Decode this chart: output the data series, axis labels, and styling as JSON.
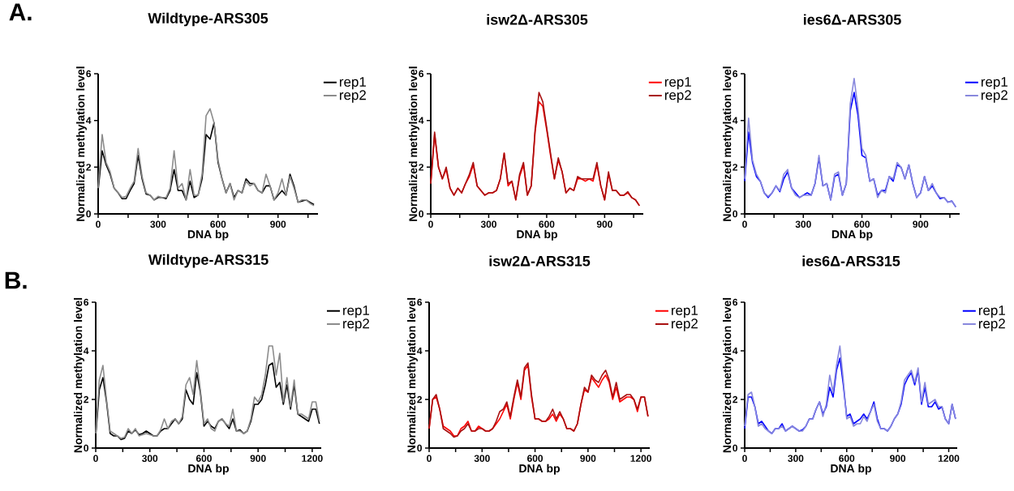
{
  "chart_data": [
    {
      "type": "line",
      "title": "Wildtype-ARS305",
      "xlabel": "DNA bp",
      "ylabel": "Normalized methylation level",
      "annotations": [
        "A."
      ],
      "x": [
        0,
        20,
        40,
        60,
        80,
        100,
        120,
        140,
        160,
        180,
        200,
        220,
        240,
        260,
        280,
        300,
        320,
        340,
        360,
        380,
        400,
        420,
        440,
        460,
        480,
        500,
        520,
        540,
        560,
        580,
        600,
        620,
        640,
        660,
        680,
        700,
        720,
        740,
        760,
        780,
        800,
        820,
        840,
        860,
        880,
        900,
        920,
        940,
        960,
        980,
        1000,
        1020,
        1040,
        1060,
        1080
      ],
      "series": [
        {
          "name": "rep1",
          "color": "#000000",
          "values": [
            1.0,
            2.7,
            2.1,
            1.7,
            1.1,
            0.9,
            0.65,
            0.65,
            1.0,
            1.3,
            2.5,
            1.5,
            0.85,
            0.8,
            0.6,
            0.7,
            0.7,
            0.65,
            1.0,
            1.9,
            1.0,
            1.0,
            0.6,
            1.4,
            0.7,
            0.8,
            1.5,
            3.4,
            3.2,
            3.9,
            2.2,
            1.5,
            0.9,
            1.3,
            0.7,
            1.0,
            0.9,
            1.5,
            1.3,
            1.3,
            1.0,
            0.9,
            1.2,
            1.2,
            0.6,
            0.8,
            1.0,
            0.8,
            1.7,
            1.2,
            0.5,
            0.55,
            0.6,
            0.5,
            0.4
          ]
        },
        {
          "name": "rep2",
          "color": "#8c8c8c",
          "values": [
            1.1,
            3.4,
            2.2,
            1.8,
            1.1,
            0.9,
            0.7,
            0.75,
            1.1,
            1.4,
            2.8,
            1.6,
            0.9,
            0.8,
            0.6,
            0.75,
            0.7,
            0.7,
            1.1,
            2.7,
            1.1,
            1.3,
            0.6,
            1.9,
            0.8,
            0.8,
            1.7,
            4.2,
            4.5,
            3.9,
            2.3,
            1.5,
            0.9,
            1.3,
            0.6,
            1.0,
            0.9,
            1.4,
            1.2,
            1.3,
            1.0,
            0.9,
            1.7,
            1.2,
            0.6,
            0.9,
            1.5,
            0.8,
            1.6,
            1.1,
            0.5,
            0.6,
            0.6,
            0.45,
            0.35
          ]
        }
      ],
      "xlim": [
        0,
        1100
      ],
      "xticks": [
        0,
        {
          "value": 150,
          "label": null
        },
        300,
        {
          "value": 450,
          "label": null
        },
        600,
        {
          "value": 750,
          "label": null
        },
        900,
        {
          "value": 1050,
          "label": null
        }
      ],
      "ylim": [
        0,
        6
      ],
      "yticks": [
        0,
        2,
        4,
        6
      ],
      "legend": "top right"
    },
    {
      "type": "line",
      "title": "isw2Δ-ARS305",
      "xlabel": "DNA bp",
      "ylabel": "Normalized methylation level",
      "x": [
        0,
        20,
        40,
        60,
        80,
        100,
        120,
        140,
        160,
        180,
        200,
        220,
        240,
        260,
        280,
        300,
        320,
        340,
        360,
        380,
        400,
        420,
        440,
        460,
        480,
        500,
        520,
        540,
        560,
        580,
        600,
        620,
        640,
        660,
        680,
        700,
        720,
        740,
        760,
        780,
        800,
        820,
        840,
        860,
        880,
        900,
        920,
        940,
        960,
        980,
        1000,
        1020,
        1040,
        1060,
        1080
      ],
      "series": [
        {
          "name": "rep1",
          "color": "#ff0000",
          "values": [
            1.3,
            3.4,
            2.0,
            1.5,
            1.9,
            1.1,
            0.8,
            1.1,
            0.9,
            1.3,
            1.6,
            2.1,
            1.2,
            1.0,
            0.8,
            0.9,
            0.9,
            1.0,
            1.5,
            2.6,
            1.2,
            1.4,
            0.6,
            1.6,
            2.1,
            0.8,
            1.2,
            3.5,
            4.8,
            4.6,
            3.6,
            2.5,
            1.5,
            2.3,
            1.8,
            0.9,
            1.1,
            1.0,
            1.5,
            1.5,
            1.4,
            1.5,
            1.4,
            2.1,
            1.2,
            0.6,
            1.7,
            1.0,
            1.0,
            0.8,
            0.8,
            0.9,
            0.7,
            0.6,
            0.35
          ]
        },
        {
          "name": "rep2",
          "color": "#a81010",
          "values": [
            1.3,
            3.5,
            2.0,
            1.5,
            2.0,
            1.1,
            0.8,
            1.1,
            0.9,
            1.3,
            1.7,
            2.2,
            1.2,
            1.0,
            0.8,
            0.9,
            0.9,
            1.0,
            1.5,
            2.6,
            1.3,
            1.4,
            0.6,
            1.7,
            2.2,
            0.8,
            1.2,
            3.6,
            5.2,
            4.8,
            3.7,
            2.6,
            1.5,
            2.4,
            1.8,
            0.9,
            1.1,
            1.0,
            1.6,
            1.5,
            1.5,
            1.5,
            1.5,
            2.2,
            1.2,
            0.6,
            1.8,
            1.0,
            1.0,
            0.8,
            0.8,
            0.95,
            0.7,
            0.6,
            0.35
          ]
        }
      ],
      "xlim": [
        0,
        1100
      ],
      "xticks": [
        0,
        {
          "value": 150,
          "label": null
        },
        300,
        {
          "value": 450,
          "label": null
        },
        600,
        {
          "value": 750,
          "label": null
        },
        900,
        {
          "value": 1050,
          "label": null
        }
      ],
      "ylim": [
        0,
        6
      ],
      "yticks": [
        0,
        2,
        4,
        6
      ],
      "legend": "top right"
    },
    {
      "type": "line",
      "title": "ies6Δ-ARS305",
      "xlabel": "DNA bp",
      "ylabel": "Normalized methylation level",
      "x": [
        0,
        20,
        40,
        60,
        80,
        100,
        120,
        140,
        160,
        180,
        200,
        220,
        240,
        260,
        280,
        300,
        320,
        340,
        360,
        380,
        400,
        420,
        440,
        460,
        480,
        500,
        520,
        540,
        560,
        580,
        600,
        620,
        640,
        660,
        680,
        700,
        720,
        740,
        760,
        780,
        800,
        820,
        840,
        860,
        880,
        900,
        920,
        940,
        960,
        980,
        1000,
        1020,
        1040,
        1060,
        1080
      ],
      "series": [
        {
          "name": "rep1",
          "color": "#0000ff",
          "values": [
            1.4,
            3.5,
            2.2,
            1.6,
            1.4,
            0.9,
            0.7,
            0.9,
            1.2,
            0.95,
            1.5,
            1.8,
            1.1,
            0.9,
            0.7,
            0.8,
            0.9,
            0.8,
            1.3,
            2.4,
            1.2,
            1.3,
            0.6,
            1.6,
            1.7,
            0.8,
            1.3,
            4.4,
            5.2,
            4.2,
            2.5,
            2.4,
            1.4,
            1.5,
            0.8,
            1.0,
            1.0,
            1.6,
            1.4,
            2.1,
            2.0,
            1.5,
            2.1,
            1.3,
            0.7,
            0.9,
            1.6,
            1.0,
            1.2,
            0.9,
            0.65,
            0.7,
            0.5,
            0.55,
            0.3
          ]
        },
        {
          "name": "rep2",
          "color": "#8888dd",
          "values": [
            1.5,
            4.1,
            2.3,
            1.7,
            1.4,
            0.9,
            0.75,
            0.9,
            1.2,
            1.0,
            1.7,
            1.9,
            1.1,
            0.8,
            0.7,
            0.8,
            0.8,
            0.8,
            1.3,
            2.5,
            1.2,
            1.3,
            0.6,
            1.7,
            1.8,
            0.8,
            1.3,
            4.7,
            5.8,
            4.5,
            2.8,
            2.5,
            1.4,
            1.5,
            0.7,
            1.0,
            0.9,
            1.6,
            1.5,
            2.2,
            2.0,
            1.5,
            2.1,
            1.3,
            0.7,
            0.9,
            1.6,
            1.0,
            1.3,
            0.9,
            0.7,
            0.7,
            0.5,
            0.55,
            0.3
          ]
        }
      ],
      "xlim": [
        0,
        1100
      ],
      "xticks": [
        0,
        {
          "value": 150,
          "label": null
        },
        300,
        {
          "value": 450,
          "label": null
        },
        600,
        {
          "value": 750,
          "label": null
        },
        900,
        {
          "value": 1050,
          "label": null
        }
      ],
      "ylim": [
        0,
        6
      ],
      "yticks": [
        0,
        2,
        4,
        6
      ],
      "legend": "top right"
    },
    {
      "type": "line",
      "title": "Wildtype-ARS315",
      "xlabel": "DNA bp",
      "ylabel": "Normalized methylation level",
      "annotations": [
        "B."
      ],
      "x": [
        0,
        20,
        40,
        60,
        80,
        100,
        120,
        140,
        160,
        180,
        200,
        220,
        240,
        260,
        280,
        300,
        320,
        340,
        360,
        380,
        400,
        420,
        440,
        460,
        480,
        500,
        520,
        540,
        560,
        580,
        600,
        620,
        640,
        660,
        680,
        700,
        720,
        740,
        760,
        780,
        800,
        820,
        840,
        860,
        880,
        900,
        920,
        940,
        960,
        980,
        1000,
        1020,
        1040,
        1060,
        1080,
        1100,
        1120,
        1140,
        1160,
        1180,
        1200,
        1220,
        1240
      ],
      "series": [
        {
          "name": "rep1",
          "color": "#000000",
          "values": [
            0.5,
            2.4,
            2.9,
            1.9,
            0.6,
            0.5,
            0.5,
            0.35,
            0.4,
            0.7,
            0.6,
            0.75,
            0.55,
            0.6,
            0.7,
            0.6,
            0.5,
            0.5,
            0.7,
            0.8,
            0.8,
            1.0,
            1.2,
            1.0,
            1.2,
            2.4,
            2.0,
            1.8,
            3.1,
            2.3,
            0.9,
            1.1,
            0.9,
            0.8,
            1.1,
            1.2,
            1.0,
            0.8,
            1.2,
            0.7,
            0.75,
            0.6,
            0.7,
            1.1,
            1.8,
            1.8,
            2.0,
            2.6,
            3.4,
            3.5,
            2.5,
            2.7,
            1.8,
            2.6,
            1.6,
            2.6,
            1.4,
            1.3,
            1.2,
            1.1,
            1.6,
            1.6,
            1.0
          ]
        },
        {
          "name": "rep2",
          "color": "#8c8c8c",
          "values": [
            0.6,
            2.8,
            3.4,
            2.0,
            0.7,
            0.6,
            0.5,
            0.4,
            0.45,
            0.8,
            0.6,
            0.8,
            0.5,
            0.55,
            0.6,
            0.55,
            0.5,
            0.5,
            0.75,
            1.2,
            0.8,
            1.1,
            1.2,
            1.0,
            1.3,
            2.6,
            2.9,
            2.2,
            3.6,
            2.4,
            1.0,
            1.2,
            0.8,
            0.7,
            1.1,
            1.2,
            1.0,
            0.9,
            1.6,
            0.7,
            0.7,
            0.6,
            0.7,
            1.2,
            2.1,
            1.9,
            2.2,
            3.0,
            4.2,
            4.2,
            3.0,
            3.9,
            1.9,
            2.9,
            1.7,
            2.8,
            1.4,
            1.4,
            1.3,
            1.2,
            1.9,
            1.9,
            1.1
          ]
        }
      ],
      "xlim": [
        0,
        1250
      ],
      "xticks": [
        0,
        {
          "value": 150,
          "label": null
        },
        300,
        {
          "value": 450,
          "label": null
        },
        600,
        {
          "value": 750,
          "label": null
        },
        900,
        {
          "value": 1050,
          "label": null
        },
        1200
      ],
      "ylim": [
        0,
        6
      ],
      "yticks": [
        0,
        2,
        4,
        6
      ],
      "legend": "top right"
    },
    {
      "type": "line",
      "title": "isw2Δ-ARS315",
      "xlabel": "DNA bp",
      "ylabel": "Normalized methylation level",
      "x": [
        0,
        20,
        40,
        60,
        80,
        100,
        120,
        140,
        160,
        180,
        200,
        220,
        240,
        260,
        280,
        300,
        320,
        340,
        360,
        380,
        400,
        420,
        440,
        460,
        480,
        500,
        520,
        540,
        560,
        580,
        600,
        620,
        640,
        660,
        680,
        700,
        720,
        740,
        760,
        780,
        800,
        820,
        840,
        860,
        880,
        900,
        920,
        940,
        960,
        980,
        1000,
        1020,
        1040,
        1060,
        1080,
        1100,
        1120,
        1140,
        1160,
        1180,
        1200,
        1220,
        1240
      ],
      "series": [
        {
          "name": "rep1",
          "color": "#ff0000",
          "values": [
            0.8,
            2.0,
            2.1,
            1.6,
            0.9,
            0.8,
            0.7,
            0.5,
            0.5,
            0.8,
            0.9,
            1.1,
            0.7,
            0.7,
            0.9,
            0.8,
            0.7,
            0.7,
            0.8,
            1.0,
            1.2,
            1.5,
            1.8,
            1.2,
            2.0,
            2.7,
            2.0,
            3.2,
            3.4,
            2.1,
            1.2,
            1.2,
            1.1,
            1.1,
            1.2,
            1.4,
            1.1,
            1.4,
            1.2,
            0.8,
            0.8,
            0.7,
            1.0,
            1.8,
            2.4,
            2.3,
            2.9,
            2.7,
            2.5,
            2.8,
            3.0,
            2.7,
            2.0,
            2.5,
            1.9,
            2.0,
            2.1,
            2.1,
            2.0,
            1.5,
            2.1,
            2.1,
            1.3
          ]
        },
        {
          "name": "rep2",
          "color": "#a81010",
          "values": [
            0.8,
            2.0,
            2.2,
            1.6,
            0.8,
            0.7,
            0.6,
            0.45,
            0.5,
            0.7,
            0.8,
            1.0,
            0.7,
            0.7,
            0.8,
            0.8,
            0.7,
            0.7,
            0.8,
            1.1,
            1.5,
            1.6,
            1.9,
            1.3,
            2.1,
            2.8,
            2.1,
            3.3,
            3.5,
            2.2,
            1.2,
            1.2,
            1.1,
            1.1,
            1.3,
            1.6,
            1.2,
            1.5,
            1.2,
            0.8,
            0.8,
            0.7,
            1.0,
            1.8,
            2.5,
            2.3,
            3.0,
            2.8,
            2.7,
            3.0,
            3.2,
            2.8,
            2.1,
            2.7,
            2.0,
            2.1,
            2.2,
            2.2,
            2.0,
            1.6,
            2.1,
            2.1,
            1.3
          ]
        }
      ],
      "xlim": [
        0,
        1250
      ],
      "xticks": [
        0,
        {
          "value": 150,
          "label": null
        },
        300,
        {
          "value": 450,
          "label": null
        },
        600,
        {
          "value": 750,
          "label": null
        },
        900,
        {
          "value": 1050,
          "label": null
        },
        1200
      ],
      "ylim": [
        0,
        6
      ],
      "yticks": [
        0,
        2,
        4,
        6
      ],
      "legend": "top right"
    },
    {
      "type": "line",
      "title": "ies6Δ-ARS315",
      "xlabel": "DNA bp",
      "ylabel": "Normalized methylation level",
      "x": [
        0,
        20,
        40,
        60,
        80,
        100,
        120,
        140,
        160,
        180,
        200,
        220,
        240,
        260,
        280,
        300,
        320,
        340,
        360,
        380,
        400,
        420,
        440,
        460,
        480,
        500,
        520,
        540,
        560,
        580,
        600,
        620,
        640,
        660,
        680,
        700,
        720,
        740,
        760,
        780,
        800,
        820,
        840,
        860,
        880,
        900,
        920,
        940,
        960,
        980,
        1000,
        1020,
        1040,
        1060,
        1080,
        1100,
        1120,
        1140,
        1160,
        1180,
        1200,
        1220,
        1240
      ],
      "series": [
        {
          "name": "rep1",
          "color": "#0000ff",
          "values": [
            0.8,
            2.1,
            2.1,
            1.7,
            1.0,
            1.1,
            0.9,
            0.7,
            0.6,
            0.8,
            0.8,
            1.0,
            0.7,
            0.8,
            0.9,
            0.8,
            0.7,
            0.75,
            0.9,
            1.2,
            1.2,
            1.6,
            1.9,
            1.4,
            1.7,
            2.5,
            2.1,
            3.2,
            3.7,
            2.6,
            1.3,
            1.4,
            1.0,
            1.1,
            1.2,
            1.4,
            1.2,
            1.5,
            1.9,
            1.2,
            0.8,
            0.8,
            0.7,
            0.9,
            1.2,
            1.4,
            1.8,
            2.6,
            2.9,
            3.1,
            2.6,
            3.2,
            1.8,
            2.5,
            1.7,
            1.7,
            1.9,
            1.6,
            1.7,
            1.2,
            1.0,
            1.8,
            1.2
          ]
        },
        {
          "name": "rep2",
          "color": "#8888dd",
          "values": [
            0.9,
            2.2,
            2.3,
            1.7,
            0.9,
            1.0,
            0.8,
            0.7,
            0.6,
            0.8,
            0.8,
            0.9,
            0.7,
            0.8,
            0.9,
            0.8,
            0.7,
            0.7,
            0.9,
            1.2,
            1.2,
            1.6,
            1.9,
            1.3,
            1.8,
            3.0,
            2.3,
            3.4,
            4.2,
            2.8,
            1.2,
            1.3,
            0.9,
            1.0,
            1.0,
            1.3,
            1.1,
            1.5,
            1.8,
            1.1,
            0.8,
            0.8,
            0.7,
            0.9,
            1.2,
            1.4,
            1.9,
            2.8,
            3.0,
            3.2,
            2.7,
            3.3,
            1.9,
            2.7,
            1.8,
            1.9,
            2.0,
            1.7,
            1.7,
            1.2,
            1.0,
            1.8,
            1.2
          ]
        }
      ],
      "xlim": [
        0,
        1250
      ],
      "xticks": [
        0,
        {
          "value": 150,
          "label": null
        },
        300,
        {
          "value": 450,
          "label": null
        },
        600,
        {
          "value": 750,
          "label": null
        },
        900,
        {
          "value": 1050,
          "label": null
        },
        1200
      ],
      "ylim": [
        0,
        6
      ],
      "yticks": [
        0,
        2,
        4,
        6
      ],
      "legend": "top right"
    }
  ]
}
